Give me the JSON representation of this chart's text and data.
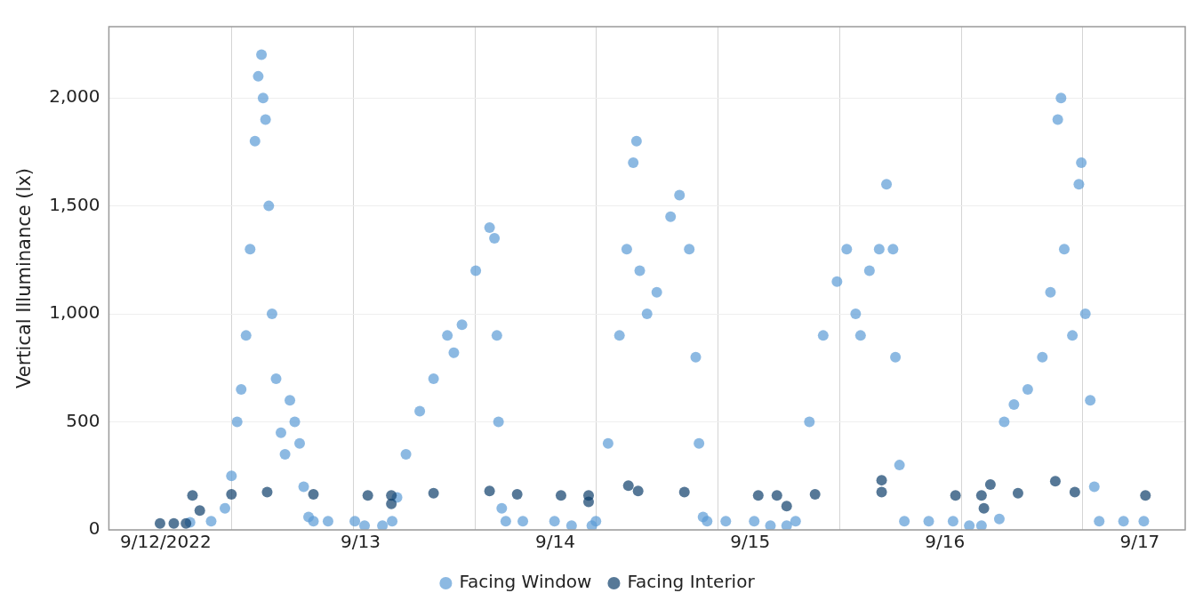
{
  "chart_data": {
    "type": "scatter",
    "ylabel": "Vertical Illuminance (lx)",
    "xlim": [
      "2022-09-11T17:00",
      "2022-09-17T05:36"
    ],
    "xticks": [
      {
        "value": "2022-09-12T00:00",
        "label": "9/12/2022"
      },
      {
        "value": "2022-09-12T08:06",
        "label": null
      },
      {
        "value": "2022-09-12T23:06",
        "label": null
      },
      {
        "value": "2022-09-13T00:00",
        "label": "9/13"
      },
      {
        "value": "2022-09-13T14:06",
        "label": null
      },
      {
        "value": "2022-09-14T00:00",
        "label": "9/14"
      },
      {
        "value": "2022-09-14T05:00",
        "label": null
      },
      {
        "value": "2022-09-14T20:00",
        "label": null
      },
      {
        "value": "2022-09-15T00:00",
        "label": "9/15"
      },
      {
        "value": "2022-09-15T11:00",
        "label": null
      },
      {
        "value": "2022-09-16T00:00",
        "label": "9/16"
      },
      {
        "value": "2022-09-16T02:00",
        "label": null
      },
      {
        "value": "2022-09-16T16:54",
        "label": null
      },
      {
        "value": "2022-09-17T00:00",
        "label": "9/17"
      }
    ],
    "ylim": [
      0,
      2330
    ],
    "yticks": [
      0,
      500,
      {
        "value": 1000,
        "label": "1,000"
      },
      {
        "value": 1500,
        "label": "1,500"
      },
      {
        "value": 2000,
        "label": "2,000"
      }
    ],
    "grid": true,
    "legend": "bottom",
    "marker": "circle",
    "series": [
      {
        "name": "Facing Window",
        "color": "#5b9bd5",
        "x": [
          "2022-09-12T03:00",
          "2022-09-12T05:36",
          "2022-09-12T07:18",
          "2022-09-12T08:06",
          "2022-09-12T08:48",
          "2022-09-12T09:18",
          "2022-09-12T09:54",
          "2022-09-12T10:24",
          "2022-09-12T11:00",
          "2022-09-12T11:24",
          "2022-09-12T11:48",
          "2022-09-12T12:00",
          "2022-09-12T12:18",
          "2022-09-12T12:42",
          "2022-09-12T13:06",
          "2022-09-12T13:36",
          "2022-09-12T14:12",
          "2022-09-12T14:42",
          "2022-09-12T15:18",
          "2022-09-12T15:54",
          "2022-09-12T16:30",
          "2022-09-12T17:00",
          "2022-09-12T17:36",
          "2022-09-12T18:12",
          "2022-09-12T20:00",
          "2022-09-12T23:18",
          "2022-09-13T00:30",
          "2022-09-13T02:42",
          "2022-09-13T03:54",
          "2022-09-13T04:30",
          "2022-09-13T05:36",
          "2022-09-13T07:18",
          "2022-09-13T09:00",
          "2022-09-13T10:42",
          "2022-09-13T11:30",
          "2022-09-13T12:30",
          "2022-09-13T14:12",
          "2022-09-13T15:54",
          "2022-09-13T16:30",
          "2022-09-13T16:48",
          "2022-09-13T17:00",
          "2022-09-13T17:24",
          "2022-09-13T17:54",
          "2022-09-13T20:00",
          "2022-09-13T23:54",
          "2022-09-14T02:00",
          "2022-09-14T04:30",
          "2022-09-14T05:00",
          "2022-09-14T06:30",
          "2022-09-14T07:54",
          "2022-09-14T08:48",
          "2022-09-14T09:36",
          "2022-09-14T10:00",
          "2022-09-14T10:24",
          "2022-09-14T11:18",
          "2022-09-14T12:30",
          "2022-09-14T14:12",
          "2022-09-14T15:18",
          "2022-09-14T16:30",
          "2022-09-14T17:18",
          "2022-09-14T17:42",
          "2022-09-14T18:12",
          "2022-09-14T18:42",
          "2022-09-14T21:00",
          "2022-09-15T00:30",
          "2022-09-15T02:30",
          "2022-09-15T04:30",
          "2022-09-15T05:36",
          "2022-09-15T07:18",
          "2022-09-15T09:00",
          "2022-09-15T10:42",
          "2022-09-15T11:54",
          "2022-09-15T13:00",
          "2022-09-15T13:36",
          "2022-09-15T14:42",
          "2022-09-15T15:54",
          "2022-09-15T16:48",
          "2022-09-15T17:36",
          "2022-09-15T17:54",
          "2022-09-15T18:24",
          "2022-09-15T19:00",
          "2022-09-15T22:00",
          "2022-09-16T01:00",
          "2022-09-16T03:00",
          "2022-09-16T04:30",
          "2022-09-16T06:42",
          "2022-09-16T07:18",
          "2022-09-16T08:30",
          "2022-09-16T10:12",
          "2022-09-16T12:00",
          "2022-09-16T13:00",
          "2022-09-16T13:54",
          "2022-09-16T14:18",
          "2022-09-16T14:42",
          "2022-09-16T15:42",
          "2022-09-16T16:30",
          "2022-09-16T16:48",
          "2022-09-16T17:18",
          "2022-09-16T17:54",
          "2022-09-16T18:24",
          "2022-09-16T19:00",
          "2022-09-16T22:00",
          "2022-09-17T00:30"
        ],
        "values": [
          35,
          40,
          100,
          250,
          500,
          650,
          900,
          1300,
          1800,
          2100,
          2200,
          2000,
          1900,
          1500,
          1000,
          700,
          450,
          350,
          600,
          500,
          400,
          200,
          60,
          40,
          40,
          40,
          20,
          20,
          40,
          150,
          350,
          550,
          700,
          900,
          820,
          950,
          1200,
          1400,
          1350,
          900,
          500,
          100,
          40,
          40,
          40,
          20,
          20,
          40,
          400,
          900,
          1300,
          1700,
          1800,
          1200,
          1000,
          1100,
          1450,
          1550,
          1300,
          800,
          400,
          60,
          40,
          40,
          40,
          20,
          20,
          40,
          500,
          900,
          1150,
          1300,
          1000,
          900,
          1200,
          1300,
          1600,
          1300,
          800,
          300,
          40,
          40,
          40,
          20,
          20,
          50,
          500,
          580,
          650,
          800,
          1100,
          1900,
          2000,
          1300,
          900,
          1600,
          1700,
          1000,
          600,
          200,
          40,
          40,
          40
        ]
      },
      {
        "name": "Facing Interior",
        "color": "#0e3f6b",
        "x": [
          "2022-09-11T23:18",
          "2022-09-12T01:00",
          "2022-09-12T02:30",
          "2022-09-12T03:18",
          "2022-09-12T04:12",
          "2022-09-12T08:06",
          "2022-09-12T12:30",
          "2022-09-12T18:12",
          "2022-09-13T00:54",
          "2022-09-13T03:48",
          "2022-09-13T03:48",
          "2022-09-13T09:00",
          "2022-09-13T15:54",
          "2022-09-13T19:18",
          "2022-09-14T00:42",
          "2022-09-14T04:06",
          "2022-09-14T04:06",
          "2022-09-14T09:00",
          "2022-09-14T10:12",
          "2022-09-14T15:54",
          "2022-09-15T01:00",
          "2022-09-15T03:18",
          "2022-09-15T04:30",
          "2022-09-15T08:00",
          "2022-09-15T16:12",
          "2022-09-15T16:12",
          "2022-09-16T01:18",
          "2022-09-16T04:30",
          "2022-09-16T04:48",
          "2022-09-16T05:36",
          "2022-09-16T09:00",
          "2022-09-16T13:36",
          "2022-09-16T16:00",
          "2022-09-17T00:42"
        ],
        "values": [
          30,
          30,
          30,
          160,
          90,
          165,
          175,
          165,
          160,
          160,
          120,
          170,
          180,
          165,
          160,
          160,
          130,
          205,
          180,
          175,
          160,
          160,
          110,
          165,
          230,
          175,
          160,
          160,
          100,
          210,
          170,
          225,
          175,
          160
        ]
      }
    ]
  }
}
